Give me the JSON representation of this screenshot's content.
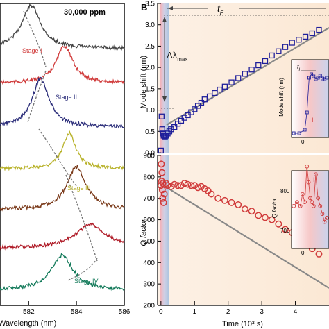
{
  "panel_b_letter": "B",
  "colors": {
    "stage1": "#d03a3a",
    "stage2": "#2c2e7a",
    "stage3": "#b8b22a",
    "stage4": "#7a3a1a",
    "stage5": "#b01e2a",
    "stage6": "#137a5a",
    "top": "#444444",
    "mode": "#1f1f9a",
    "qfac": "#d03a3a"
  },
  "chart_data": [
    {
      "type": "line",
      "panel": "A",
      "title": "30,000 ppm",
      "xlabel": "Wavelength (nm)",
      "xticks": [
        "582",
        "584",
        "586"
      ],
      "xlim": [
        580.8,
        586
      ],
      "stage_labels": [
        "Stage I",
        "Stage II",
        "Stage III",
        "Stage IV"
      ],
      "series": [
        {
          "peak": 582.1,
          "color": "top"
        },
        {
          "peak": 583.5,
          "color": "stage1"
        },
        {
          "peak": 582.5,
          "color": "stage2"
        },
        {
          "peak": 583.7,
          "color": "stage3"
        },
        {
          "peak": 584.0,
          "color": "stage4"
        },
        {
          "peak": 584.6,
          "color": "stage5"
        },
        {
          "peak": 583.4,
          "color": "stage6"
        }
      ]
    },
    {
      "type": "scatter",
      "panel": "B-top",
      "ylabel": "Mode shift (nm)",
      "xlim": [
        -0.1,
        5.0
      ],
      "ylim": [
        0,
        3.5
      ],
      "yticks": [
        "0.0",
        "0.5",
        "1.0",
        "1.5",
        "2.0",
        "2.5",
        "3.0",
        "3.5"
      ],
      "annotations": {
        "tf": "t",
        "tf_sub": "F",
        "dl": "Δλ",
        "dl_sub": "max"
      },
      "series": [
        {
          "name": "",
          "x": [
            0.0,
            0.02,
            0.04,
            0.06,
            0.08,
            0.1,
            0.12,
            0.15,
            0.2,
            0.25,
            0.3,
            0.4,
            0.5,
            0.6,
            0.7,
            0.8,
            0.9,
            1.0,
            1.1,
            1.2,
            1.3,
            1.45,
            1.6,
            1.75,
            1.9,
            2.1,
            2.3,
            2.5,
            2.7,
            2.9,
            3.1,
            3.3,
            3.5,
            3.7,
            3.9,
            4.1,
            4.3,
            4.5,
            4.7
          ],
          "y": [
            0.05,
            0.85,
            0.55,
            0.45,
            0.4,
            0.4,
            0.38,
            0.4,
            0.45,
            0.5,
            0.55,
            0.6,
            0.68,
            0.75,
            0.82,
            0.88,
            0.95,
            1.02,
            1.1,
            1.17,
            1.25,
            1.32,
            1.4,
            1.48,
            1.55,
            1.65,
            1.75,
            1.85,
            1.95,
            2.05,
            2.15,
            2.28,
            2.38,
            2.48,
            2.58,
            2.65,
            2.72,
            2.8,
            2.88
          ]
        }
      ]
    },
    {
      "type": "scatter",
      "panel": "B-bottom",
      "ylabel": "Q factor",
      "xlabel": "Time (10³ s)",
      "xlim": [
        -0.1,
        5.0
      ],
      "xticks": [
        "0",
        "1",
        "2",
        "3",
        "4"
      ],
      "ylim": [
        200,
        900
      ],
      "yticks": [
        "200",
        "300",
        "400",
        "500",
        "600",
        "700",
        "800",
        "900"
      ],
      "series": [
        {
          "name": "",
          "x": [
            0.0,
            0.01,
            0.02,
            0.03,
            0.04,
            0.05,
            0.06,
            0.08,
            0.1,
            0.15,
            0.2,
            0.3,
            0.4,
            0.5,
            0.6,
            0.7,
            0.8,
            0.9,
            1.0,
            1.1,
            1.2,
            1.3,
            1.4,
            1.5,
            1.7,
            1.9,
            2.1,
            2.3,
            2.5,
            2.7,
            2.9,
            3.1,
            3.3,
            3.5,
            3.7,
            3.9,
            4.1,
            4.3,
            4.5,
            4.7
          ],
          "y": [
            760,
            860,
            780,
            820,
            740,
            700,
            770,
            680,
            720,
            770,
            760,
            755,
            765,
            760,
            760,
            770,
            765,
            760,
            760,
            750,
            755,
            745,
            735,
            720,
            700,
            690,
            680,
            670,
            650,
            640,
            620,
            610,
            600,
            580,
            555,
            540,
            520,
            500,
            465,
            440
          ]
        }
      ]
    },
    {
      "type": "scatter",
      "panel": "B-top-inset",
      "ylabel": "Mode shift (nm)",
      "xticks": [
        "0"
      ],
      "annotations": {
        "ti": "t",
        "ti_sub": "I",
        "stage": "I"
      },
      "series": [
        {
          "name": "",
          "x": [
            -1.0,
            -0.5,
            0.0,
            0.2,
            0.4,
            0.6,
            0.8,
            1.0,
            1.2,
            1.4,
            1.6,
            1.8,
            2.0
          ],
          "y": [
            0.0,
            0.0,
            0.05,
            0.3,
            0.8,
            0.85,
            0.82,
            0.78,
            0.8,
            0.83,
            0.79,
            0.78,
            0.8
          ]
        }
      ]
    },
    {
      "type": "scatter",
      "panel": "B-bottom-inset",
      "ylabel": "Q factor",
      "yticks": [
        "700",
        "800"
      ],
      "xticks": [
        "0"
      ],
      "annotations": {
        "stage": "I"
      },
      "series": [
        {
          "name": "",
          "x": [
            -1.0,
            -0.7,
            -0.4,
            -0.2,
            0.0,
            0.2,
            0.35,
            0.5,
            0.65,
            0.8,
            1.0,
            1.2,
            1.4,
            1.6,
            1.8,
            2.0
          ],
          "y": [
            760,
            770,
            760,
            790,
            770,
            860,
            820,
            780,
            770,
            760,
            840,
            780,
            760,
            740,
            720,
            730
          ]
        }
      ]
    }
  ]
}
